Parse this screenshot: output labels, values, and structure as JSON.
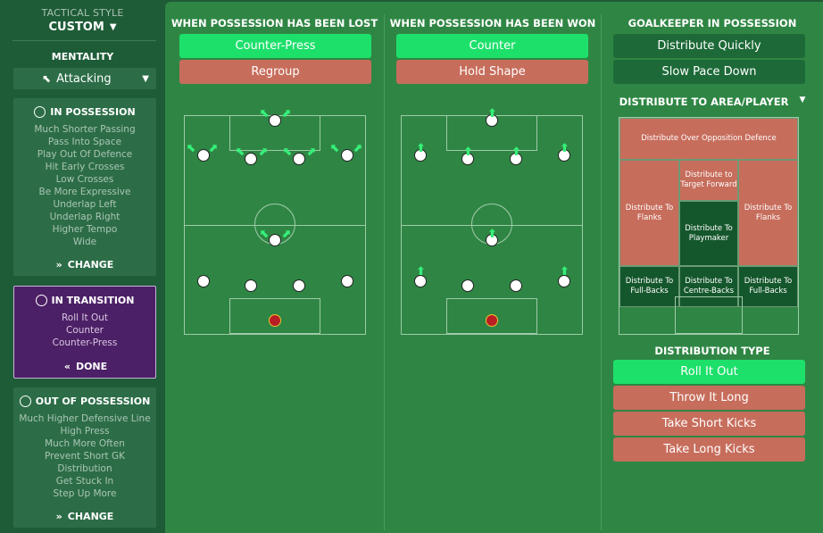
{
  "sidebar": {
    "tactical_style_label": "TACTICAL STYLE",
    "tactical_style_value": "CUSTOM",
    "mentality_label": "MENTALITY",
    "mentality_value": "Attacking",
    "in_possession": {
      "title": "IN POSSESSION",
      "items": [
        "Much Shorter Passing",
        "Pass Into Space",
        "Play Out Of Defence",
        "Hit Early Crosses",
        "Low Crosses",
        "Be More Expressive",
        "Underlap Left",
        "Underlap Right",
        "Higher Tempo",
        "Wide"
      ],
      "action": "CHANGE"
    },
    "in_transition": {
      "title": "IN TRANSITION",
      "items": [
        "Roll It Out",
        "Counter",
        "Counter-Press"
      ],
      "action": "DONE"
    },
    "out_of_possession": {
      "title": "OUT OF POSSESSION",
      "items": [
        "Much Higher Defensive Line",
        "High Press",
        "Much More Often",
        "Prevent Short GK",
        "Distribution",
        "Get Stuck In",
        "Step Up More"
      ],
      "action": "CHANGE"
    }
  },
  "lost": {
    "title": "WHEN POSSESSION HAS BEEN LOST",
    "options": [
      "Counter-Press",
      "Regroup"
    ]
  },
  "won": {
    "title": "WHEN POSSESSION HAS BEEN WON",
    "options": [
      "Counter",
      "Hold Shape"
    ]
  },
  "gk": {
    "title": "GOALKEEPER IN POSSESSION",
    "options": [
      "Distribute Quickly",
      "Slow Pace Down"
    ],
    "area_title": "DISTRIBUTE TO AREA/PLAYER",
    "zones": {
      "over_defence": "Distribute Over Opposition Defence",
      "target_forward": "Distribute to Target Forward",
      "flanks_left": "Distribute To Flanks",
      "flanks_right": "Distribute To Flanks",
      "playmaker": "Distribute To Playmaker",
      "fb_left": "Distribute To Full-Backs",
      "cb": "Distribute To Centre-Backs",
      "fb_right": "Distribute To Full-Backs"
    },
    "type_title": "DISTRIBUTION TYPE",
    "types": [
      "Roll It Out",
      "Throw It Long",
      "Take Short Kicks",
      "Take Long Kicks"
    ]
  },
  "colors": {
    "selected": "#1de06b",
    "unselected": "#c76d5c",
    "transition_panel": "#4c2066"
  }
}
